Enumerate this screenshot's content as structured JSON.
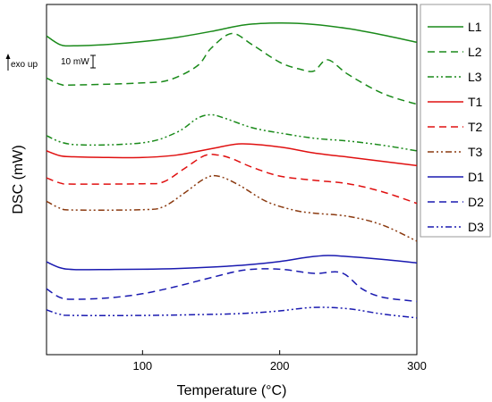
{
  "chart_data": {
    "type": "line",
    "xlabel": "Temperature (°C)",
    "ylabel": "DSC (mW)",
    "xlim": [
      30,
      300
    ],
    "xticks": [
      100,
      200,
      300
    ],
    "ylim": [
      0,
      100
    ],
    "grid": false,
    "legend_position": "right-outside",
    "annotations": {
      "exo": "exo up",
      "scale": "10 mW"
    },
    "series": [
      {
        "name": "L1",
        "color": "#1a8a1a",
        "dash": "solid",
        "x": [
          30,
          40,
          50,
          75,
          100,
          125,
          150,
          175,
          200,
          225,
          250,
          275,
          300
        ],
        "y": [
          91,
          88.5,
          88.2,
          88.6,
          89.4,
          90.6,
          92.3,
          94.2,
          94.7,
          94.3,
          93.1,
          91.3,
          89.2
        ]
      },
      {
        "name": "L2",
        "color": "#1a8a1a",
        "dash": "dash",
        "x": [
          30,
          40,
          50,
          100,
          120,
          140,
          150,
          165,
          180,
          200,
          215,
          225,
          235,
          250,
          275,
          300
        ],
        "y": [
          79,
          77.2,
          77,
          77.6,
          78.5,
          82.5,
          87.5,
          91.7,
          88.5,
          83.5,
          81.5,
          81,
          84.2,
          80,
          74.6,
          71.5
        ]
      },
      {
        "name": "L3",
        "color": "#1a8a1a",
        "dash": "dashdotdot",
        "x": [
          30,
          50,
          100,
          125,
          140,
          150,
          160,
          180,
          200,
          225,
          250,
          275,
          300
        ],
        "y": [
          62.5,
          60,
          60.5,
          63.5,
          67.5,
          68.5,
          67.5,
          64.8,
          63.3,
          61.8,
          61,
          59.8,
          58.2
        ]
      },
      {
        "name": "T1",
        "color": "#e01010",
        "dash": "solid",
        "x": [
          30,
          40,
          50,
          75,
          100,
          125,
          150,
          172,
          200,
          225,
          250,
          275,
          300
        ],
        "y": [
          58.2,
          56.8,
          56.5,
          56.3,
          56.3,
          57,
          58.8,
          60.2,
          59.3,
          57.6,
          56.4,
          55.2,
          54
        ]
      },
      {
        "name": "T2",
        "color": "#e01010",
        "dash": "dash",
        "x": [
          30,
          40,
          50,
          100,
          115,
          130,
          145,
          155,
          165,
          180,
          200,
          225,
          250,
          275,
          300
        ],
        "y": [
          50.5,
          49,
          48.7,
          48.8,
          49.3,
          53,
          56.8,
          57,
          56,
          53.5,
          51,
          49.8,
          48.8,
          46.5,
          43.2
        ]
      },
      {
        "name": "T3",
        "color": "#8b3a10",
        "dash": "dashdotdot",
        "x": [
          30,
          40,
          50,
          100,
          115,
          130,
          145,
          155,
          170,
          190,
          210,
          225,
          250,
          275,
          300
        ],
        "y": [
          43.8,
          41.8,
          41.3,
          41.4,
          42.2,
          46,
          50.2,
          51,
          48.5,
          43.8,
          41.3,
          40.4,
          39.5,
          37,
          32.4
        ]
      },
      {
        "name": "D1",
        "color": "#1a1ab0",
        "dash": "solid",
        "x": [
          30,
          40,
          50,
          75,
          100,
          125,
          150,
          175,
          200,
          220,
          235,
          250,
          275,
          300
        ],
        "y": [
          26.5,
          24.8,
          24.3,
          24.3,
          24.4,
          24.6,
          25,
          25.6,
          26.6,
          27.8,
          28.3,
          28,
          27.2,
          26.2
        ]
      },
      {
        "name": "D2",
        "color": "#1a1ab0",
        "dash": "dash",
        "x": [
          30,
          40,
          50,
          75,
          100,
          125,
          150,
          175,
          200,
          225,
          245,
          260,
          275,
          300
        ],
        "y": [
          18.8,
          16.3,
          15.8,
          16.2,
          17.4,
          19.5,
          22,
          24.2,
          24.4,
          23.2,
          23.4,
          18.8,
          16.4,
          15.2
        ]
      },
      {
        "name": "D3",
        "color": "#1a1ab0",
        "dash": "dashdotdot",
        "x": [
          30,
          40,
          50,
          100,
          150,
          175,
          200,
          225,
          250,
          275,
          300
        ],
        "y": [
          12.8,
          11.5,
          11.2,
          11.2,
          11.5,
          11.8,
          12.5,
          13.5,
          13.1,
          11.6,
          10.5
        ]
      }
    ]
  }
}
